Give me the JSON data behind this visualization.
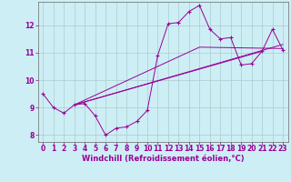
{
  "xlabel": "Windchill (Refroidissement éolien,°C)",
  "background_color": "#cdeef5",
  "line_color": "#990099",
  "grid_color": "#aacccc",
  "xlim": [
    -0.5,
    23.5
  ],
  "ylim": [
    7.75,
    12.85
  ],
  "xticks": [
    0,
    1,
    2,
    3,
    4,
    5,
    6,
    7,
    8,
    9,
    10,
    11,
    12,
    13,
    14,
    15,
    16,
    17,
    18,
    19,
    20,
    21,
    22,
    23
  ],
  "yticks": [
    8,
    9,
    10,
    11,
    12
  ],
  "series_main": {
    "x": [
      0,
      1,
      2,
      3,
      4,
      5,
      6,
      7,
      8,
      9,
      10,
      11,
      12,
      13,
      14,
      15,
      16,
      17,
      18,
      19,
      20,
      21,
      22,
      23
    ],
    "y": [
      9.5,
      9.0,
      8.8,
      9.1,
      9.15,
      8.7,
      8.0,
      8.25,
      8.3,
      8.5,
      8.9,
      10.9,
      12.05,
      12.1,
      12.5,
      12.72,
      11.85,
      11.5,
      11.55,
      10.55,
      10.6,
      11.05,
      11.85,
      11.1
    ]
  },
  "series_lines": [
    {
      "x": [
        3,
        23
      ],
      "y": [
        9.1,
        11.3
      ]
    },
    {
      "x": [
        3,
        21
      ],
      "y": [
        9.1,
        11.05
      ]
    },
    {
      "x": [
        3,
        15,
        23
      ],
      "y": [
        9.1,
        11.2,
        11.15
      ]
    }
  ]
}
